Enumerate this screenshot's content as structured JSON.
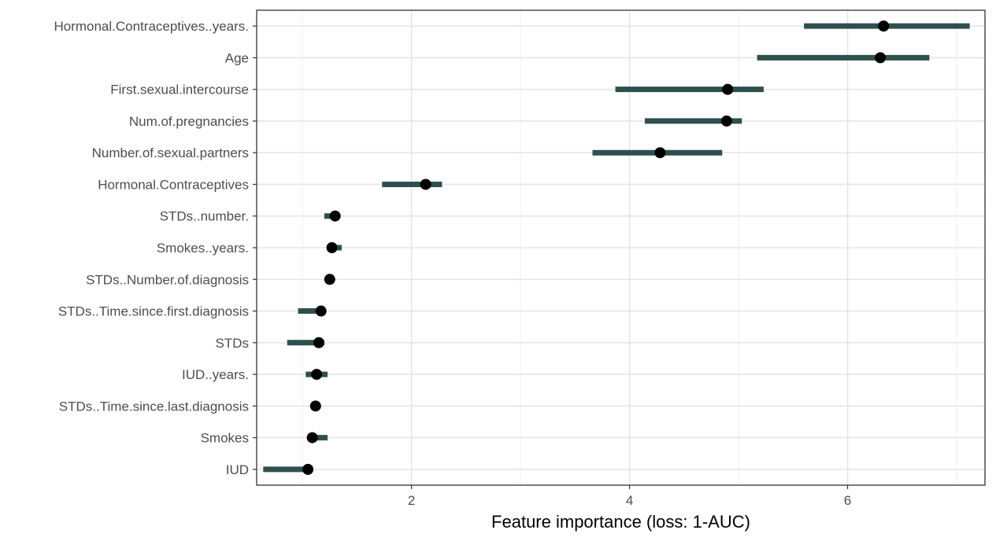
{
  "chart_data": {
    "type": "dot-range",
    "title": "",
    "xlabel": "Feature importance (loss: 1-AUC)",
    "ylabel": "",
    "xlim": [
      0.58,
      7.26
    ],
    "x_ticks": [
      2,
      4,
      6
    ],
    "grid": true,
    "colors": {
      "range": "#2f4f4f",
      "point": "#000000"
    },
    "features": [
      {
        "name": "Hormonal.Contraceptives..years.",
        "importance": 6.33,
        "low": 5.6,
        "high": 7.12
      },
      {
        "name": "Age",
        "importance": 6.3,
        "low": 5.17,
        "high": 6.75
      },
      {
        "name": "First.sexual.intercourse",
        "importance": 4.9,
        "low": 3.87,
        "high": 5.23
      },
      {
        "name": "Num.of.pregnancies",
        "importance": 4.89,
        "low": 4.14,
        "high": 5.03
      },
      {
        "name": "Number.of.sexual.partners",
        "importance": 4.28,
        "low": 3.66,
        "high": 4.85
      },
      {
        "name": "Hormonal.Contraceptives",
        "importance": 2.13,
        "low": 1.73,
        "high": 2.28
      },
      {
        "name": "STDs..number.",
        "importance": 1.3,
        "low": 1.2,
        "high": 1.33
      },
      {
        "name": "Smokes..years.",
        "importance": 1.27,
        "low": 1.24,
        "high": 1.36
      },
      {
        "name": "STDs..Number.of.diagnosis",
        "importance": 1.25,
        "low": 1.23,
        "high": 1.27
      },
      {
        "name": "STDs..Time.since.first.diagnosis",
        "importance": 1.17,
        "low": 0.96,
        "high": 1.21
      },
      {
        "name": "STDs",
        "importance": 1.15,
        "low": 0.86,
        "high": 1.2
      },
      {
        "name": "IUD..years.",
        "importance": 1.13,
        "low": 1.03,
        "high": 1.23
      },
      {
        "name": "STDs..Time.since.last.diagnosis",
        "importance": 1.12,
        "low": 1.1,
        "high": 1.15
      },
      {
        "name": "Smokes",
        "importance": 1.09,
        "low": 1.07,
        "high": 1.23
      },
      {
        "name": "IUD",
        "importance": 1.05,
        "low": 0.64,
        "high": 1.08
      }
    ]
  }
}
